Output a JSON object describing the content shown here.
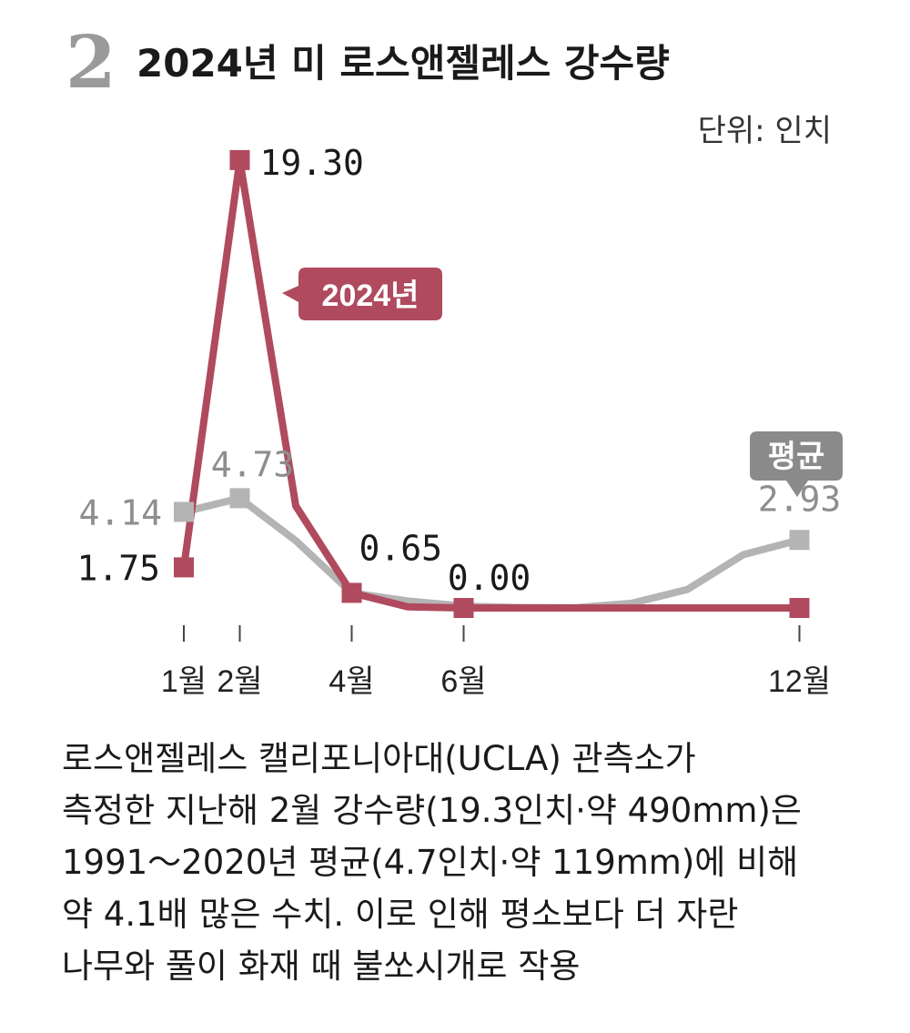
{
  "header": {
    "number": "2",
    "title": "2024년 미 로스앤젤레스 강수량",
    "unit": "단위: 인치"
  },
  "chart_data": {
    "type": "line",
    "title": "2024년 미 로스앤젤레스 강수량",
    "unit": "단위: 인치",
    "x": [
      1,
      2,
      3,
      4,
      5,
      6,
      7,
      8,
      9,
      10,
      11,
      12
    ],
    "x_tick_labels": [
      {
        "month": 1,
        "label": "1월"
      },
      {
        "month": 2,
        "label": "2월"
      },
      {
        "month": 4,
        "label": "4월"
      },
      {
        "month": 6,
        "label": "6월"
      },
      {
        "month": 12,
        "label": "12월"
      }
    ],
    "ylim": [
      0,
      20
    ],
    "series": [
      {
        "name": "평균",
        "color": "#b4b4b4",
        "values": [
          4.14,
          4.73,
          2.9,
          0.65,
          0.3,
          0.08,
          0.02,
          0.01,
          0.2,
          0.8,
          2.3,
          2.93
        ],
        "labels": [
          {
            "month": 1,
            "text": "4.14"
          },
          {
            "month": 2,
            "text": "4.73"
          },
          {
            "month": 12,
            "text": "2.93"
          }
        ],
        "marker_months": [
          1,
          2,
          12
        ]
      },
      {
        "name": "2024년",
        "color": "#b04a5e",
        "values": [
          1.75,
          19.3,
          4.4,
          0.65,
          0.05,
          0.0,
          0.0,
          0.0,
          0.0,
          0.0,
          0.0,
          0.0
        ],
        "labels": [
          {
            "month": 1,
            "text": "1.75"
          },
          {
            "month": 2,
            "text": "19.30"
          },
          {
            "month": 4,
            "text": "0.65"
          },
          {
            "month": 6,
            "text": "0.00"
          }
        ],
        "marker_months": [
          1,
          2,
          4,
          6,
          12
        ]
      }
    ],
    "grid": false,
    "legend": "callout labels on lines"
  },
  "caption": {
    "lines": [
      "로스앤젤레스 캘리포니아대(UCLA) 관측소가",
      "측정한 지난해 2월 강수량(19.3인치·약 490mm)은",
      "1991～2020년 평균(4.7인치·약 119mm)에 비해",
      "약 4.1배 많은 수치. 이로 인해 평소보다 더 자란",
      "나무와 풀이 화재 때 불쏘시개로 작용"
    ]
  }
}
